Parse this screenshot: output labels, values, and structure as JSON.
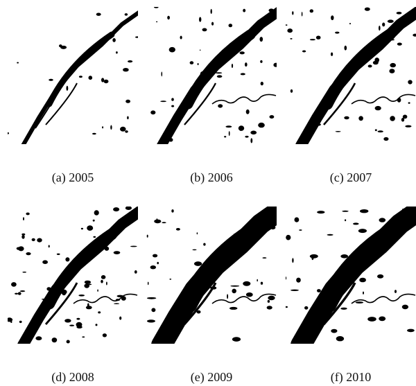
{
  "figure": {
    "panels": [
      {
        "caption": "(a) 2005"
      },
      {
        "caption": "(b) 2006"
      },
      {
        "caption": "(c) 2007"
      },
      {
        "caption": "(d) 2008"
      },
      {
        "caption": "(e) 2009"
      },
      {
        "caption": "(f) 2010"
      }
    ]
  }
}
